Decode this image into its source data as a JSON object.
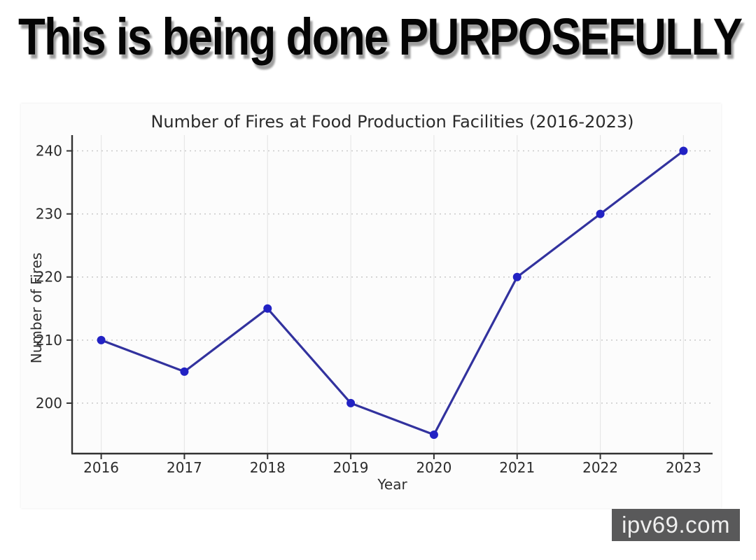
{
  "meme": {
    "headline": "This is being done PURPOSEFULLY",
    "watermark": "ipv69.com"
  },
  "chart_data": {
    "type": "line",
    "title": "Number of Fires at Food Production Facilities (2016-2023)",
    "xlabel": "Year",
    "ylabel": "Number of Fires",
    "x": [
      2016,
      2017,
      2018,
      2019,
      2020,
      2021,
      2022,
      2023
    ],
    "series": [
      {
        "name": "Number of Fires",
        "values": [
          210,
          205,
          215,
          200,
          195,
          220,
          230,
          240
        ]
      }
    ],
    "yticks": [
      200,
      210,
      220,
      230,
      240
    ],
    "xlim": [
      2015.65,
      2023.35
    ],
    "ylim": [
      192,
      242.5
    ],
    "grid": true,
    "legend_position": "none",
    "marker": "circle",
    "line_color": "#32329e",
    "marker_color": "#2222c4",
    "grid_color_vertical": "#e7e7e7",
    "grid_color_horizontal": "#c9c9c9",
    "axis_color": "#333333"
  }
}
